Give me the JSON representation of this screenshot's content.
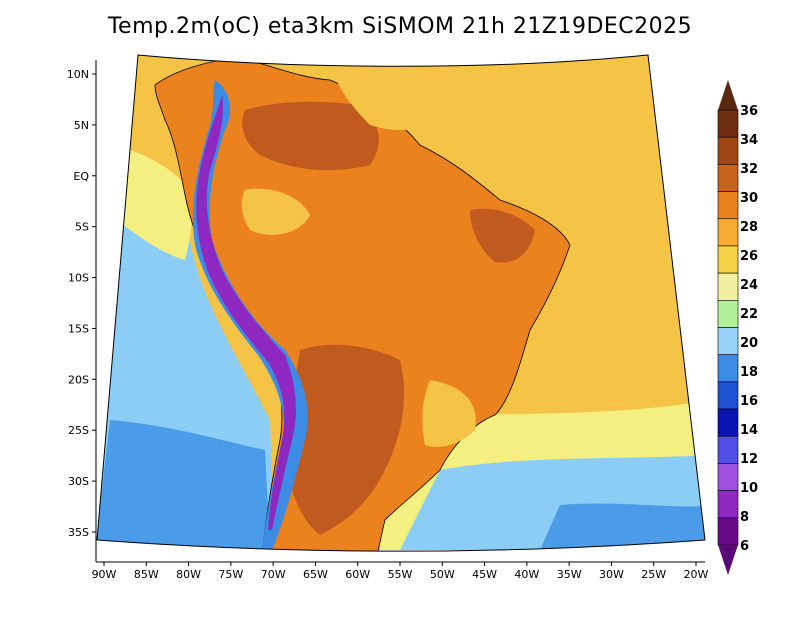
{
  "title": "Temp.2m(oC) eta3km SiSMOM 21h 21Z19DEC2025",
  "x_axis": {
    "ticks": [
      "90W",
      "85W",
      "80W",
      "75W",
      "70W",
      "65W",
      "60W",
      "55W",
      "50W",
      "45W",
      "40W",
      "35W",
      "30W",
      "25W",
      "20W"
    ]
  },
  "y_axis": {
    "ticks": [
      "10N",
      "5N",
      "EQ",
      "5S",
      "10S",
      "15S",
      "20S",
      "25S",
      "30S",
      "35S"
    ]
  },
  "colorbar": {
    "labels": [
      "6",
      "8",
      "10",
      "12",
      "14",
      "16",
      "18",
      "20",
      "22",
      "24",
      "26",
      "28",
      "30",
      "32",
      "34",
      "36"
    ],
    "colors": [
      "#6a0a8a",
      "#8f28c0",
      "#a050e0",
      "#5050e8",
      "#0a14b4",
      "#1e50d2",
      "#3c8ce6",
      "#96d2fa",
      "#b4f09a",
      "#f0f0a0",
      "#f8d246",
      "#f6aa32",
      "#eb821e",
      "#c8641e",
      "#a04614",
      "#6e2d0f"
    ],
    "over_color": "#5a2810",
    "under_color": "#5a0a78"
  },
  "map": {
    "ocean_color": "#f5c346",
    "south_ocean_color": "#f3f081",
    "cool_ocean_color": "#8ccdf5",
    "cold_ocean_color": "#4a9be8",
    "land_color": "#eb821e",
    "hot_land_color": "#c05a1e",
    "andes_color": "#3c8ce6",
    "andes_high_color": "#8f28c0"
  }
}
